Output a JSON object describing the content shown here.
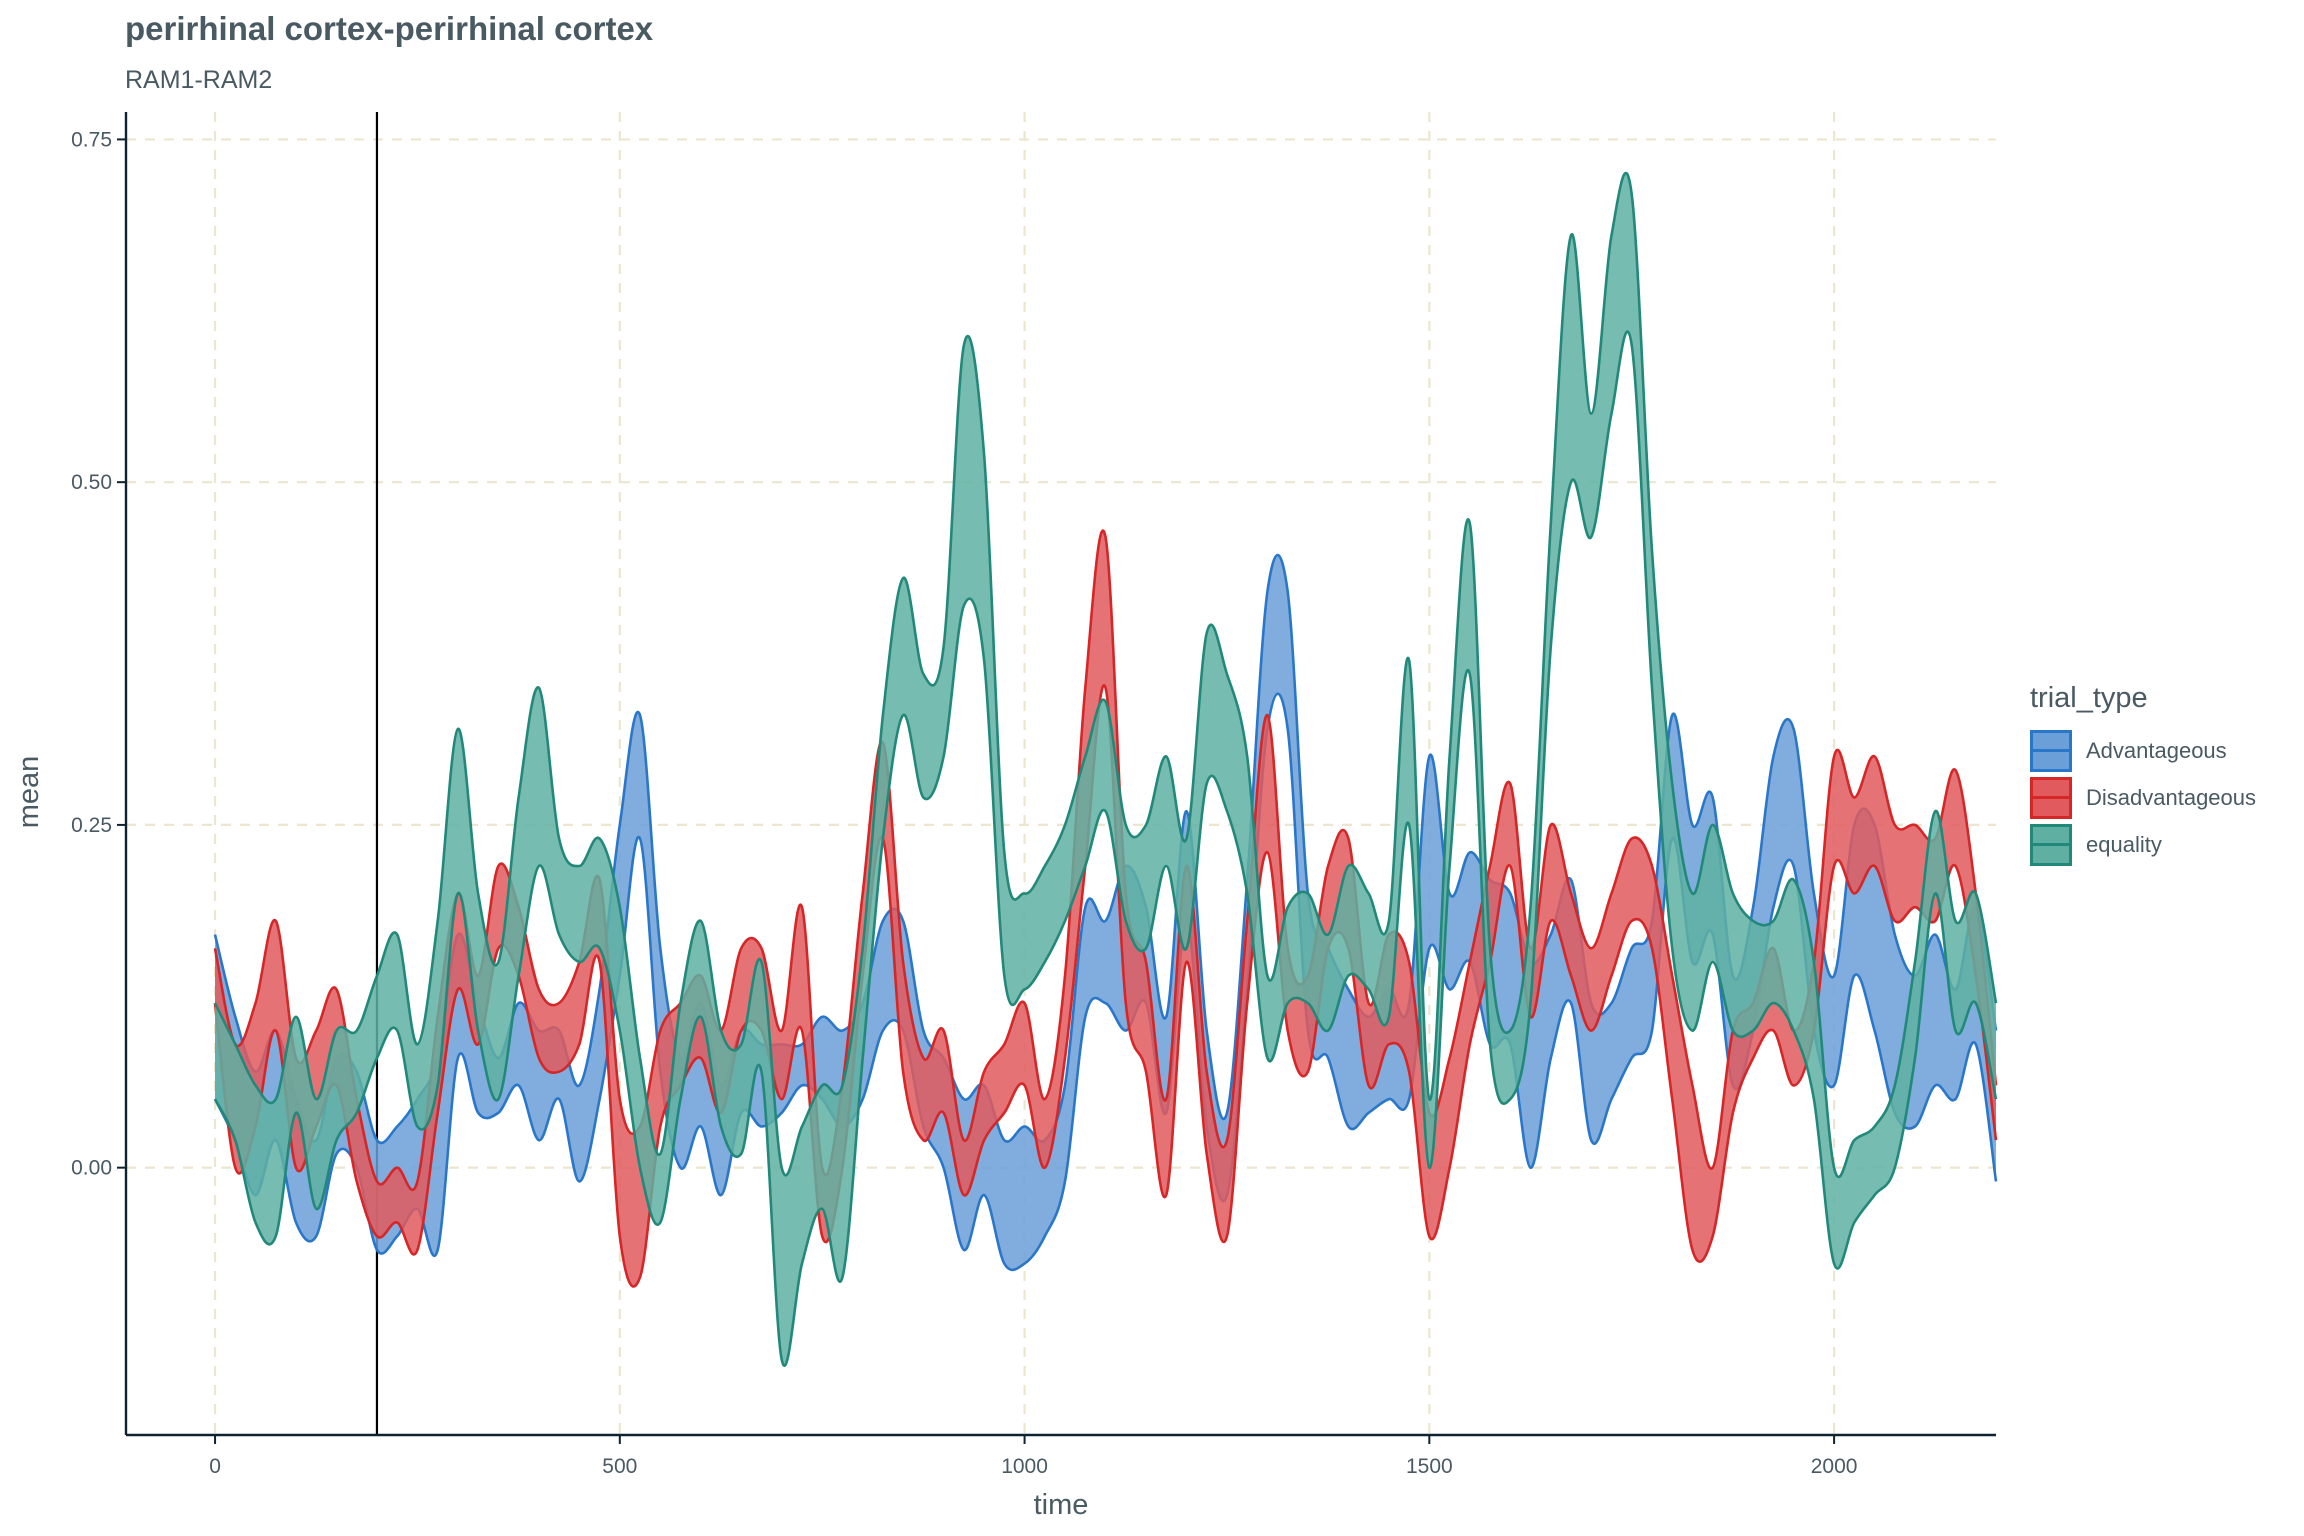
{
  "chart_data": {
    "type": "area",
    "title": "perirhinal cortex-perirhinal cortex",
    "subtitle": "RAM1-RAM2",
    "xlabel": "time",
    "ylabel": "mean",
    "xlim": [
      -110,
      2200
    ],
    "ylim": [
      -0.195,
      0.77
    ],
    "x_ticks": [
      0,
      500,
      1000,
      1500,
      2000
    ],
    "x_tick_labels": [
      "0",
      "500",
      "1000",
      "1500",
      "2000"
    ],
    "y_ticks": [
      0.0,
      0.25,
      0.5,
      0.75
    ],
    "y_tick_labels": [
      "0.00",
      "0.25",
      "0.50",
      "0.75"
    ],
    "grid": "dashed major gridlines",
    "vline_x": 200,
    "legend": {
      "title": "trial_type",
      "position": "right"
    },
    "series": [
      {
        "name": "Advantageous",
        "color": "#2a77c9",
        "fill": "#6a9fd8",
        "x": [
          0,
          25,
          50,
          75,
          100,
          125,
          150,
          175,
          200,
          225,
          250,
          275,
          300,
          325,
          350,
          375,
          400,
          425,
          450,
          475,
          500,
          525,
          550,
          575,
          600,
          625,
          650,
          675,
          700,
          725,
          750,
          775,
          800,
          825,
          850,
          875,
          900,
          925,
          950,
          975,
          1000,
          1025,
          1050,
          1075,
          1100,
          1125,
          1150,
          1175,
          1200,
          1225,
          1250,
          1275,
          1300,
          1325,
          1350,
          1375,
          1400,
          1425,
          1450,
          1475,
          1500,
          1525,
          1550,
          1575,
          1600,
          1625,
          1650,
          1675,
          1700,
          1725,
          1750,
          1775,
          1800,
          1825,
          1850,
          1875,
          1900,
          1925,
          1950,
          1975,
          2000,
          2025,
          2050,
          2075,
          2100,
          2125,
          2150,
          2175,
          2200
        ],
        "upper": [
          0.17,
          0.11,
          0.07,
          0.1,
          0.05,
          0.02,
          0.08,
          0.07,
          0.02,
          0.03,
          0.05,
          0.08,
          0.17,
          0.12,
          0.08,
          0.12,
          0.1,
          0.1,
          0.06,
          0.13,
          0.25,
          0.33,
          0.16,
          0.08,
          0.12,
          0.06,
          0.1,
          0.09,
          0.09,
          0.09,
          0.11,
          0.1,
          0.12,
          0.18,
          0.18,
          0.1,
          0.08,
          0.05,
          0.06,
          0.02,
          0.03,
          0.02,
          0.06,
          0.19,
          0.18,
          0.22,
          0.19,
          0.11,
          0.26,
          0.1,
          0.04,
          0.21,
          0.42,
          0.42,
          0.2,
          0.16,
          0.13,
          0.11,
          0.13,
          0.12,
          0.3,
          0.2,
          0.23,
          0.21,
          0.2,
          0.15,
          0.17,
          0.21,
          0.12,
          0.12,
          0.16,
          0.18,
          0.33,
          0.25,
          0.27,
          0.14,
          0.19,
          0.3,
          0.32,
          0.2,
          0.14,
          0.25,
          0.25,
          0.17,
          0.14,
          0.17,
          0.13,
          0.19,
          0.1
        ],
        "lower": [
          0.05,
          0.02,
          -0.02,
          0.02,
          -0.04,
          -0.05,
          0.01,
          0.0,
          -0.06,
          -0.05,
          -0.03,
          -0.06,
          0.08,
          0.04,
          0.04,
          0.06,
          0.02,
          0.05,
          -0.01,
          0.05,
          0.14,
          0.24,
          0.07,
          0.0,
          0.03,
          -0.02,
          0.04,
          0.03,
          0.04,
          0.06,
          0.05,
          0.03,
          0.05,
          0.1,
          0.1,
          0.03,
          0.0,
          -0.06,
          -0.02,
          -0.07,
          -0.07,
          -0.05,
          -0.01,
          0.11,
          0.12,
          0.1,
          0.12,
          0.04,
          0.18,
          0.03,
          -0.02,
          0.13,
          0.32,
          0.32,
          0.1,
          0.08,
          0.03,
          0.04,
          0.05,
          0.05,
          0.16,
          0.13,
          0.15,
          0.09,
          0.09,
          0.0,
          0.08,
          0.12,
          0.02,
          0.05,
          0.08,
          0.1,
          0.24,
          0.15,
          0.17,
          0.06,
          0.1,
          0.19,
          0.22,
          0.1,
          0.06,
          0.14,
          0.1,
          0.04,
          0.03,
          0.06,
          0.05,
          0.09,
          -0.01
        ]
      },
      {
        "name": "Disadvantageous",
        "color": "#d62728",
        "fill": "#e05a5e",
        "x": [
          0,
          25,
          50,
          75,
          100,
          125,
          150,
          175,
          200,
          225,
          250,
          275,
          300,
          325,
          350,
          375,
          400,
          425,
          450,
          475,
          500,
          525,
          550,
          575,
          600,
          625,
          650,
          675,
          700,
          725,
          750,
          775,
          800,
          825,
          850,
          875,
          900,
          925,
          950,
          975,
          1000,
          1025,
          1050,
          1075,
          1100,
          1125,
          1150,
          1175,
          1200,
          1225,
          1250,
          1275,
          1300,
          1325,
          1350,
          1375,
          1400,
          1425,
          1450,
          1475,
          1500,
          1525,
          1550,
          1575,
          1600,
          1625,
          1650,
          1675,
          1700,
          1725,
          1750,
          1775,
          1800,
          1825,
          1850,
          1875,
          1900,
          1925,
          1950,
          1975,
          2000,
          2025,
          2050,
          2075,
          2100,
          2125,
          2150,
          2175,
          2200
        ],
        "upper": [
          0.16,
          0.09,
          0.12,
          0.18,
          0.08,
          0.1,
          0.13,
          0.05,
          -0.01,
          0.0,
          -0.01,
          0.11,
          0.2,
          0.14,
          0.22,
          0.19,
          0.13,
          0.12,
          0.15,
          0.21,
          0.05,
          0.03,
          0.1,
          0.12,
          0.14,
          0.1,
          0.16,
          0.16,
          0.1,
          0.19,
          0.0,
          0.06,
          0.2,
          0.31,
          0.15,
          0.08,
          0.1,
          0.02,
          0.07,
          0.09,
          0.12,
          0.05,
          0.14,
          0.35,
          0.46,
          0.2,
          0.15,
          0.05,
          0.22,
          0.07,
          0.02,
          0.18,
          0.33,
          0.16,
          0.14,
          0.22,
          0.24,
          0.12,
          0.17,
          0.15,
          0.04,
          0.08,
          0.15,
          0.22,
          0.28,
          0.16,
          0.25,
          0.2,
          0.16,
          0.2,
          0.24,
          0.22,
          0.14,
          0.06,
          0.0,
          0.1,
          0.12,
          0.16,
          0.1,
          0.15,
          0.3,
          0.27,
          0.3,
          0.25,
          0.25,
          0.24,
          0.29,
          0.2,
          0.06
        ],
        "lower": [
          0.12,
          0.0,
          0.03,
          0.1,
          0.0,
          0.03,
          0.06,
          -0.01,
          -0.05,
          -0.04,
          -0.06,
          0.04,
          0.13,
          0.09,
          0.16,
          0.14,
          0.08,
          0.07,
          0.09,
          0.15,
          -0.05,
          -0.08,
          0.03,
          0.06,
          0.08,
          0.04,
          0.1,
          0.1,
          0.05,
          0.1,
          -0.05,
          0.0,
          0.14,
          0.24,
          0.07,
          0.02,
          0.04,
          -0.02,
          0.02,
          0.04,
          0.06,
          0.0,
          0.08,
          0.22,
          0.35,
          0.12,
          0.07,
          -0.02,
          0.15,
          0.01,
          -0.05,
          0.12,
          0.23,
          0.1,
          0.07,
          0.16,
          0.16,
          0.06,
          0.09,
          0.07,
          -0.05,
          0.0,
          0.09,
          0.15,
          0.22,
          0.11,
          0.18,
          0.14,
          0.1,
          0.14,
          0.18,
          0.16,
          0.05,
          -0.06,
          -0.05,
          0.04,
          0.08,
          0.1,
          0.06,
          0.1,
          0.22,
          0.2,
          0.22,
          0.18,
          0.19,
          0.18,
          0.22,
          0.14,
          0.02
        ]
      },
      {
        "name": "equality",
        "color": "#22897a",
        "fill": "#5fb0a2",
        "x": [
          0,
          25,
          50,
          75,
          100,
          125,
          150,
          175,
          200,
          225,
          250,
          275,
          300,
          325,
          350,
          375,
          400,
          425,
          450,
          475,
          500,
          525,
          550,
          575,
          600,
          625,
          650,
          675,
          700,
          725,
          750,
          775,
          800,
          825,
          850,
          875,
          900,
          925,
          950,
          975,
          1000,
          1025,
          1050,
          1075,
          1100,
          1125,
          1150,
          1175,
          1200,
          1225,
          1250,
          1275,
          1300,
          1325,
          1350,
          1375,
          1400,
          1425,
          1450,
          1475,
          1500,
          1525,
          1550,
          1575,
          1600,
          1625,
          1650,
          1675,
          1700,
          1725,
          1750,
          1775,
          1800,
          1825,
          1850,
          1875,
          1900,
          1925,
          1950,
          1975,
          2000,
          2025,
          2050,
          2075,
          2100,
          2125,
          2150,
          2175,
          2200
        ],
        "upper": [
          0.12,
          0.09,
          0.06,
          0.05,
          0.11,
          0.05,
          0.1,
          0.1,
          0.14,
          0.17,
          0.09,
          0.18,
          0.32,
          0.2,
          0.15,
          0.27,
          0.35,
          0.24,
          0.22,
          0.24,
          0.19,
          0.08,
          0.01,
          0.12,
          0.18,
          0.1,
          0.09,
          0.15,
          0.0,
          0.03,
          0.06,
          0.06,
          0.16,
          0.33,
          0.43,
          0.36,
          0.38,
          0.6,
          0.52,
          0.23,
          0.2,
          0.22,
          0.25,
          0.3,
          0.34,
          0.25,
          0.25,
          0.3,
          0.24,
          0.39,
          0.36,
          0.3,
          0.14,
          0.19,
          0.2,
          0.17,
          0.22,
          0.2,
          0.18,
          0.37,
          0.05,
          0.3,
          0.47,
          0.16,
          0.1,
          0.19,
          0.47,
          0.68,
          0.55,
          0.68,
          0.71,
          0.45,
          0.28,
          0.2,
          0.25,
          0.2,
          0.18,
          0.18,
          0.21,
          0.15,
          0.0,
          0.02,
          0.03,
          0.06,
          0.15,
          0.26,
          0.18,
          0.2,
          0.12
        ],
        "lower": [
          0.05,
          0.02,
          -0.04,
          -0.05,
          0.04,
          -0.03,
          0.02,
          0.04,
          0.08,
          0.1,
          0.03,
          0.06,
          0.2,
          0.1,
          0.05,
          0.14,
          0.22,
          0.17,
          0.15,
          0.16,
          0.1,
          0.0,
          -0.04,
          0.05,
          0.11,
          0.03,
          0.01,
          0.07,
          -0.14,
          -0.07,
          -0.03,
          -0.08,
          0.08,
          0.24,
          0.33,
          0.27,
          0.3,
          0.41,
          0.37,
          0.14,
          0.13,
          0.15,
          0.18,
          0.22,
          0.26,
          0.18,
          0.16,
          0.22,
          0.16,
          0.28,
          0.26,
          0.2,
          0.08,
          0.12,
          0.12,
          0.1,
          0.14,
          0.13,
          0.11,
          0.25,
          0.0,
          0.22,
          0.36,
          0.09,
          0.05,
          0.12,
          0.38,
          0.5,
          0.46,
          0.55,
          0.6,
          0.35,
          0.16,
          0.1,
          0.15,
          0.1,
          0.1,
          0.12,
          0.1,
          0.05,
          -0.07,
          -0.04,
          -0.02,
          0.0,
          0.08,
          0.2,
          0.1,
          0.12,
          0.05
        ]
      }
    ]
  }
}
